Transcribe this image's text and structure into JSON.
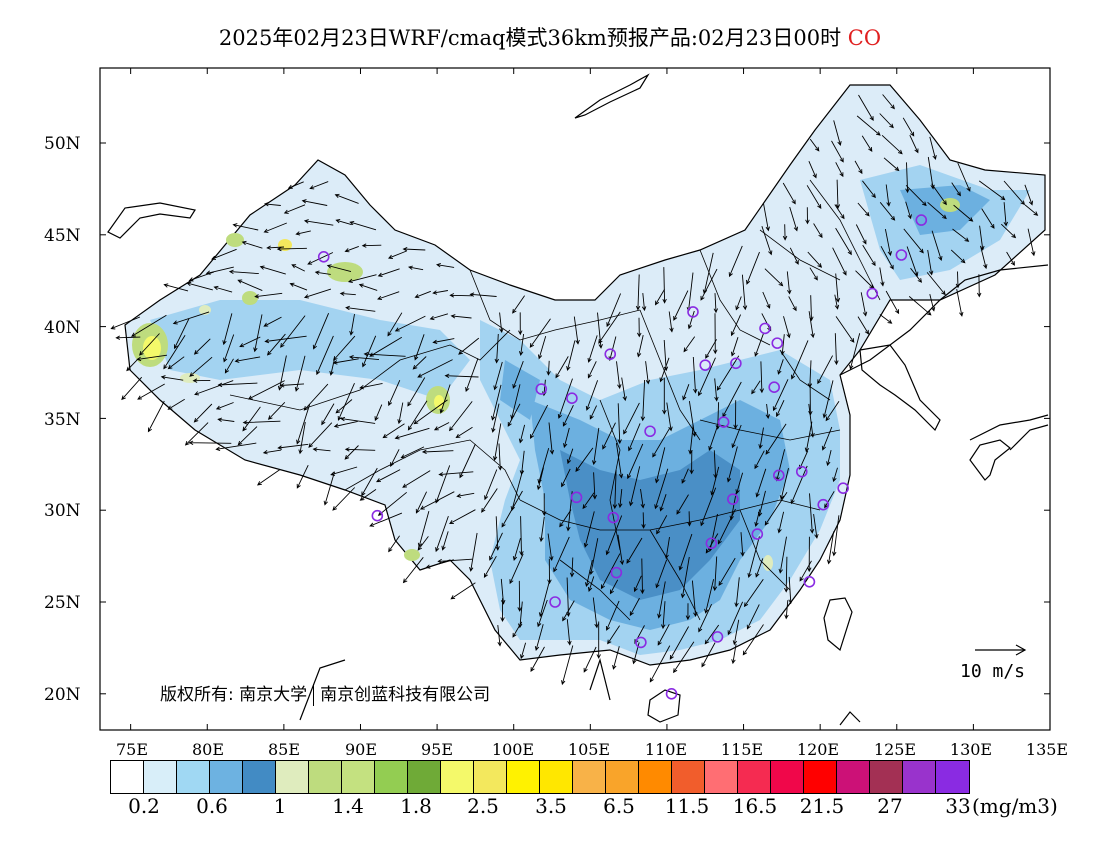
{
  "title": {
    "text": "2025年02月23日WRF/cmaq模式36km预报产品:02月23日00时",
    "species": "CO"
  },
  "axes": {
    "lat_labels": [
      "50N",
      "45N",
      "40N",
      "35N",
      "30N",
      "25N",
      "20N"
    ],
    "lon_labels": [
      "75E",
      "80E",
      "85E",
      "90E",
      "95E",
      "100E",
      "105E",
      "110E",
      "115E",
      "120E",
      "125E",
      "130E",
      "135E"
    ]
  },
  "copyright": {
    "prefix": "版权所有: 南京大学",
    "suffix": "南京创蓝科技有限公司"
  },
  "wind_reference": {
    "label": "10 m/s",
    "speed": 10
  },
  "legend": {
    "colors": [
      "#ffffff",
      "#d8eef9",
      "#a0d8f3",
      "#6db2e1",
      "#428bc4",
      "#dfecbe",
      "#bedc7e",
      "#c4e180",
      "#93cd52",
      "#6faa37",
      "#f4f96a",
      "#f3e85d",
      "#fff200",
      "#ffe700",
      "#f8b248",
      "#f9a42a",
      "#ff8a00",
      "#f15d2c",
      "#ff6e73",
      "#f52b51",
      "#f0074a",
      "#ff0000",
      "#cc1177",
      "#a33054",
      "#9933cc",
      "#8a2be2"
    ],
    "labels": [
      "0.2",
      "0.6",
      "1",
      "1.4",
      "1.8",
      "2.5",
      "3.5",
      "6.5",
      "11.5",
      "16.5",
      "21.5",
      "27",
      "33"
    ],
    "unit": "(mg/m3)"
  },
  "stations": [
    {
      "lon": 87.6,
      "lat": 43.8
    },
    {
      "lon": 91.1,
      "lat": 29.7
    },
    {
      "lon": 101.8,
      "lat": 36.6
    },
    {
      "lon": 103.8,
      "lat": 36.1
    },
    {
      "lon": 106.3,
      "lat": 38.5
    },
    {
      "lon": 104.1,
      "lat": 30.7
    },
    {
      "lon": 106.5,
      "lat": 29.6
    },
    {
      "lon": 106.7,
      "lat": 26.6
    },
    {
      "lon": 102.7,
      "lat": 25.0
    },
    {
      "lon": 108.3,
      "lat": 22.8
    },
    {
      "lon": 110.3,
      "lat": 20.0
    },
    {
      "lon": 113.3,
      "lat": 23.1
    },
    {
      "lon": 108.9,
      "lat": 34.3
    },
    {
      "lon": 111.7,
      "lat": 40.8
    },
    {
      "lon": 112.5,
      "lat": 37.9
    },
    {
      "lon": 114.5,
      "lat": 38.0
    },
    {
      "lon": 116.4,
      "lat": 39.9
    },
    {
      "lon": 117.2,
      "lat": 39.1
    },
    {
      "lon": 117.0,
      "lat": 36.7
    },
    {
      "lon": 113.7,
      "lat": 34.8
    },
    {
      "lon": 114.3,
      "lat": 30.6
    },
    {
      "lon": 112.9,
      "lat": 28.2
    },
    {
      "lon": 115.9,
      "lat": 28.7
    },
    {
      "lon": 117.3,
      "lat": 31.9
    },
    {
      "lon": 118.8,
      "lat": 32.1
    },
    {
      "lon": 120.2,
      "lat": 30.3
    },
    {
      "lon": 121.5,
      "lat": 31.2
    },
    {
      "lon": 119.3,
      "lat": 26.1
    },
    {
      "lon": 123.4,
      "lat": 41.8
    },
    {
      "lon": 125.3,
      "lat": 43.9
    },
    {
      "lon": 126.6,
      "lat": 45.8
    }
  ]
}
